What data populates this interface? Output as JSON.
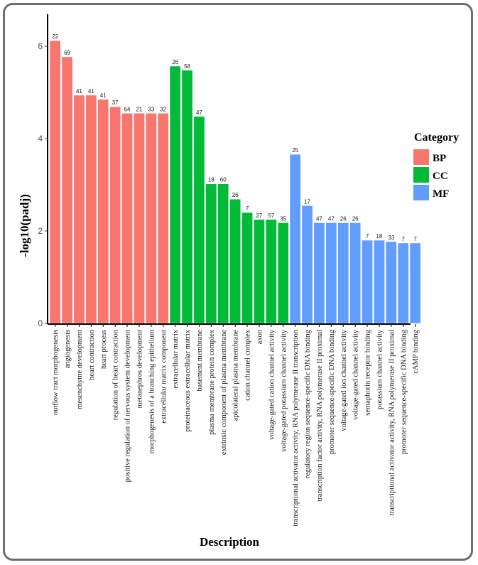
{
  "chart_data": {
    "type": "bar",
    "title": "",
    "xlabel": "Description",
    "ylabel": "-log10(padj)",
    "ylim": [
      0,
      6.3
    ],
    "yticks": [
      0,
      2,
      4,
      6
    ],
    "grid": false,
    "legend": {
      "title": "Category",
      "placement": "right",
      "entries": [
        {
          "name": "BP",
          "color": "#F8766D"
        },
        {
          "name": "CC",
          "color": "#00BA38"
        },
        {
          "name": "MF",
          "color": "#619CFF"
        }
      ]
    },
    "bars": [
      {
        "category": "outflow tract morphogenesis",
        "group": "BP",
        "value": 6.12,
        "count": "22"
      },
      {
        "category": "angiogenesis",
        "group": "BP",
        "value": 5.77,
        "count": "69"
      },
      {
        "category": "mesenchyme development",
        "group": "BP",
        "value": 4.94,
        "count": "41"
      },
      {
        "category": "heart contraction",
        "group": "BP",
        "value": 4.94,
        "count": "41"
      },
      {
        "category": "heart process",
        "group": "BP",
        "value": 4.85,
        "count": "41"
      },
      {
        "category": "regulation of heart contraction",
        "group": "BP",
        "value": 4.69,
        "count": "37"
      },
      {
        "category": "positive regulation of nervous system development",
        "group": "BP",
        "value": 4.55,
        "count": "64"
      },
      {
        "category": "metanephros development",
        "group": "BP",
        "value": 4.55,
        "count": "21"
      },
      {
        "category": "morphogenesis of a branching epithelium",
        "group": "BP",
        "value": 4.55,
        "count": "33"
      },
      {
        "category": "extracellular matrix component",
        "group": "BP",
        "value": 4.55,
        "count": "32"
      },
      {
        "category": "extracellular matrix",
        "group": "CC",
        "value": 5.57,
        "count": "26"
      },
      {
        "category": "proteinaceous extracellular matrix",
        "group": "CC",
        "value": 5.48,
        "count": "58"
      },
      {
        "category": "basement membrane",
        "group": "CC",
        "value": 4.48,
        "count": "47"
      },
      {
        "category": "plasma membrane protein complex",
        "group": "CC",
        "value": 3.02,
        "count": "18"
      },
      {
        "category": "extrinsic component of plasma membrane",
        "group": "CC",
        "value": 3.02,
        "count": "60"
      },
      {
        "category": "apicolateral plasma membrane",
        "group": "CC",
        "value": 2.69,
        "count": "26"
      },
      {
        "category": "cation channel complex",
        "group": "CC",
        "value": 2.4,
        "count": "7"
      },
      {
        "category": "axon",
        "group": "CC",
        "value": 2.25,
        "count": "27"
      },
      {
        "category": "voltage-gated cation channel activity",
        "group": "CC",
        "value": 2.25,
        "count": "57"
      },
      {
        "category": "voltage-gated potassium channel activity",
        "group": "CC",
        "value": 2.18,
        "count": "35"
      },
      {
        "category": "transcriptional activator activity, RNA polymerase II transcription",
        "group": "MF",
        "value": 3.66,
        "count": "25"
      },
      {
        "category": "regulatory region sequence-specific DNA binding",
        "group": "MF",
        "value": 2.55,
        "count": "17"
      },
      {
        "category": "transcription factor activity, RNA polymerase II proximal",
        "group": "MF",
        "value": 2.18,
        "count": "47"
      },
      {
        "category": "promoter sequence-specific DNA binding",
        "group": "MF",
        "value": 2.18,
        "count": "47"
      },
      {
        "category": "voltage-gated ion channel activity",
        "group": "MF",
        "value": 2.18,
        "count": "26"
      },
      {
        "category": "voltage-gated channel activity",
        "group": "MF",
        "value": 2.18,
        "count": "26"
      },
      {
        "category": "semaphorin receptor binding",
        "group": "MF",
        "value": 1.8,
        "count": "7"
      },
      {
        "category": "potassium channel activity",
        "group": "MF",
        "value": 1.8,
        "count": "18"
      },
      {
        "category": "transcriptional activator activity, RNA polymerase II proximal",
        "group": "MF",
        "value": 1.77,
        "count": "33"
      },
      {
        "category": "promoter sequence-specific DNA binding",
        "group": "MF",
        "value": 1.74,
        "count": "7"
      },
      {
        "category": "cAMP binding",
        "group": "MF",
        "value": 1.74,
        "count": "7"
      }
    ]
  }
}
